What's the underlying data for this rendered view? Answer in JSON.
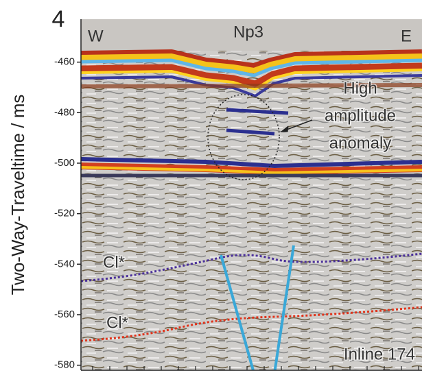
{
  "chart_data": {
    "type": "seismic-section",
    "ylabel": "Two-Way-Traveltime / ms",
    "ylim": [
      -443,
      -582
    ],
    "yticks": [
      -460,
      -480,
      -500,
      -520,
      -540,
      -560,
      -580
    ],
    "corner_label": "4",
    "annotations": {
      "west": "W",
      "east": "E",
      "horizon_top": "Np3",
      "anomaly": [
        "High",
        "amplitude",
        "anomaly"
      ],
      "horizon_upper": "Cl*",
      "horizon_lower": "Cl*",
      "inline": "Inline 174"
    }
  }
}
